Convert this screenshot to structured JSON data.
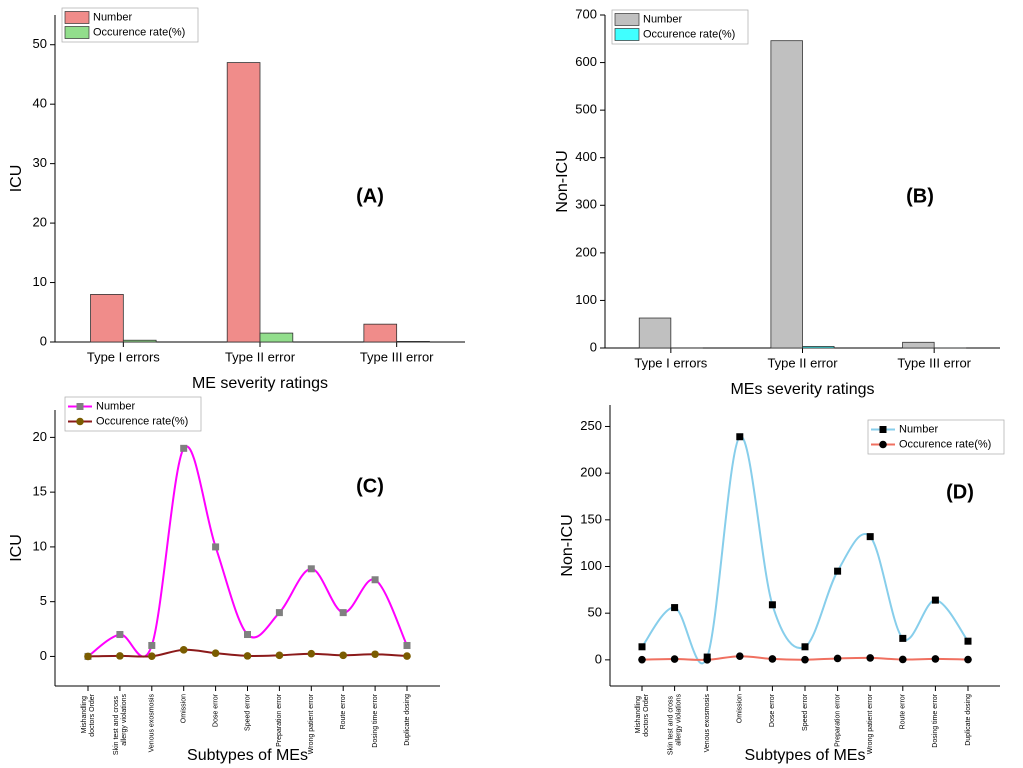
{
  "chart_data": [
    {
      "type": "bar",
      "annotation": "(A)",
      "x_label": "ME severity ratings",
      "y_label": "ICU",
      "categories": [
        "Type I errors",
        "Type II error",
        "Type III error"
      ],
      "series": [
        {
          "name": "Number",
          "color": "#f08c8a",
          "values": [
            8,
            47,
            3
          ]
        },
        {
          "name": "Occurence rate(%)",
          "color": "#92de8c",
          "values": [
            0.3,
            1.5,
            0.1
          ]
        }
      ],
      "ylim": [
        0,
        55
      ],
      "yticks": [
        0,
        10,
        20,
        30,
        40,
        50
      ],
      "legend": "upper-left"
    },
    {
      "type": "bar",
      "annotation": "(B)",
      "x_label": "MEs severity ratings",
      "y_label": "Non-ICU",
      "categories": [
        "Type I errors",
        "Type II error",
        "Type III error"
      ],
      "series": [
        {
          "name": "Number",
          "color": "#c0c0c0",
          "values": [
            63,
            646,
            12
          ]
        },
        {
          "name": "Occurence rate(%)",
          "color": "#40ffff",
          "values": [
            0.3,
            3.2,
            0.1
          ]
        }
      ],
      "ylim": [
        0,
        700
      ],
      "yticks": [
        0,
        100,
        200,
        300,
        400,
        500,
        600,
        700
      ],
      "legend": "upper-left"
    },
    {
      "type": "line",
      "annotation": "(C)",
      "x_label": "Subtypes of MEs",
      "y_label": "ICU",
      "categories": [
        "Mishandling doctors Order",
        "Skin test and cross allergy violations",
        "Venous exosmosis",
        "Omission",
        "Dose error",
        "Speed error",
        "Preparation error",
        "Wrong patient error",
        "Route error",
        "Dosing time error",
        "Duplicate dosing"
      ],
      "series": [
        {
          "name": "Number",
          "color": "#ff00ff",
          "marker_color": "#808080",
          "marker": "square",
          "values": [
            0,
            2,
            1,
            19,
            10,
            2,
            4,
            8,
            4,
            7,
            1
          ]
        },
        {
          "name": "Occurence rate(%)",
          "color": "#8b1a1a",
          "marker_color": "#7a5c00",
          "marker": "circle",
          "values": [
            0,
            0.05,
            0.02,
            0.6,
            0.3,
            0.05,
            0.1,
            0.25,
            0.1,
            0.2,
            0.03
          ]
        }
      ],
      "ylim": [
        -2.7,
        22.5
      ],
      "yticks": [
        0,
        5,
        10,
        15,
        20
      ],
      "legend": "upper-left"
    },
    {
      "type": "line",
      "annotation": "(D)",
      "x_label": "Subtypes of MEs",
      "y_label": "Non-ICU",
      "categories": [
        "Mishandling doctors Order",
        "Skin test and cross allergy violations",
        "Venous exosmosis",
        "Omission",
        "Dose error",
        "Speed error",
        "Preparation error",
        "Wrong patient error",
        "Route error",
        "Dosing time error",
        "Duplicate dosing"
      ],
      "series": [
        {
          "name": "Number",
          "color": "#87ceeb",
          "marker_color": "#000000",
          "marker": "square",
          "values": [
            14,
            56,
            3,
            239,
            59,
            14,
            95,
            132,
            23,
            64,
            20
          ]
        },
        {
          "name": "Occurence rate(%)",
          "color": "#f07060",
          "marker_color": "#000000",
          "marker": "circle",
          "values": [
            0.2,
            0.9,
            0.05,
            3.9,
            1.0,
            0.2,
            1.5,
            2.1,
            0.4,
            1.0,
            0.3
          ]
        }
      ],
      "ylim": [
        -28,
        273
      ],
      "yticks": [
        0,
        50,
        100,
        150,
        200,
        250
      ],
      "legend": "upper-right"
    }
  ]
}
